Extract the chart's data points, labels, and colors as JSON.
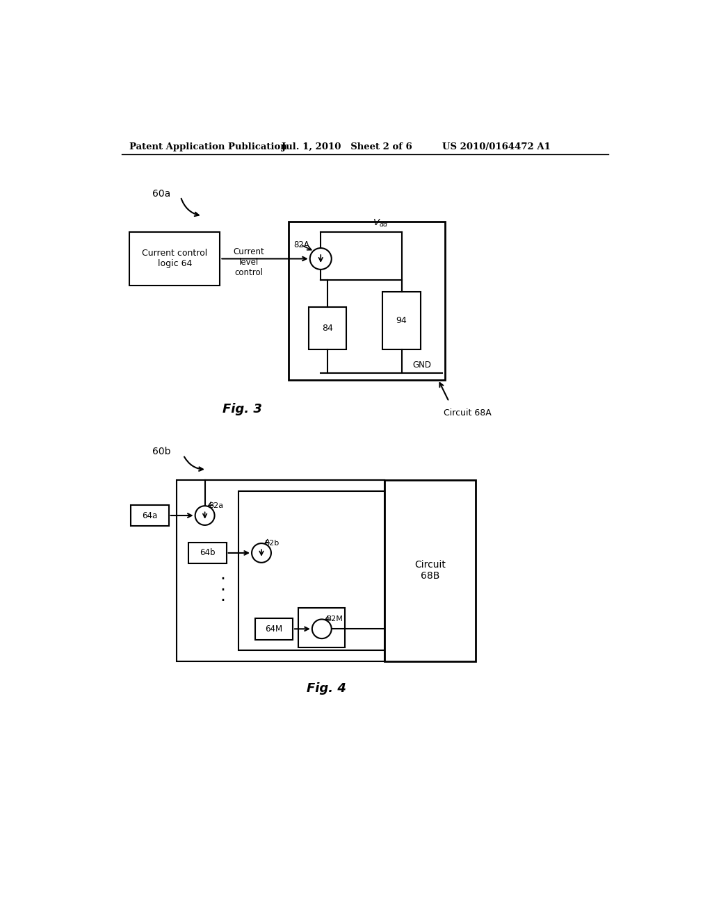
{
  "header_left": "Patent Application Publication",
  "header_mid": "Jul. 1, 2010   Sheet 2 of 6",
  "header_right": "US 2010/0164472 A1",
  "fig3_label": "Fig. 3",
  "fig4_label": "Fig. 4",
  "bg_color": "#ffffff",
  "line_color": "#000000"
}
